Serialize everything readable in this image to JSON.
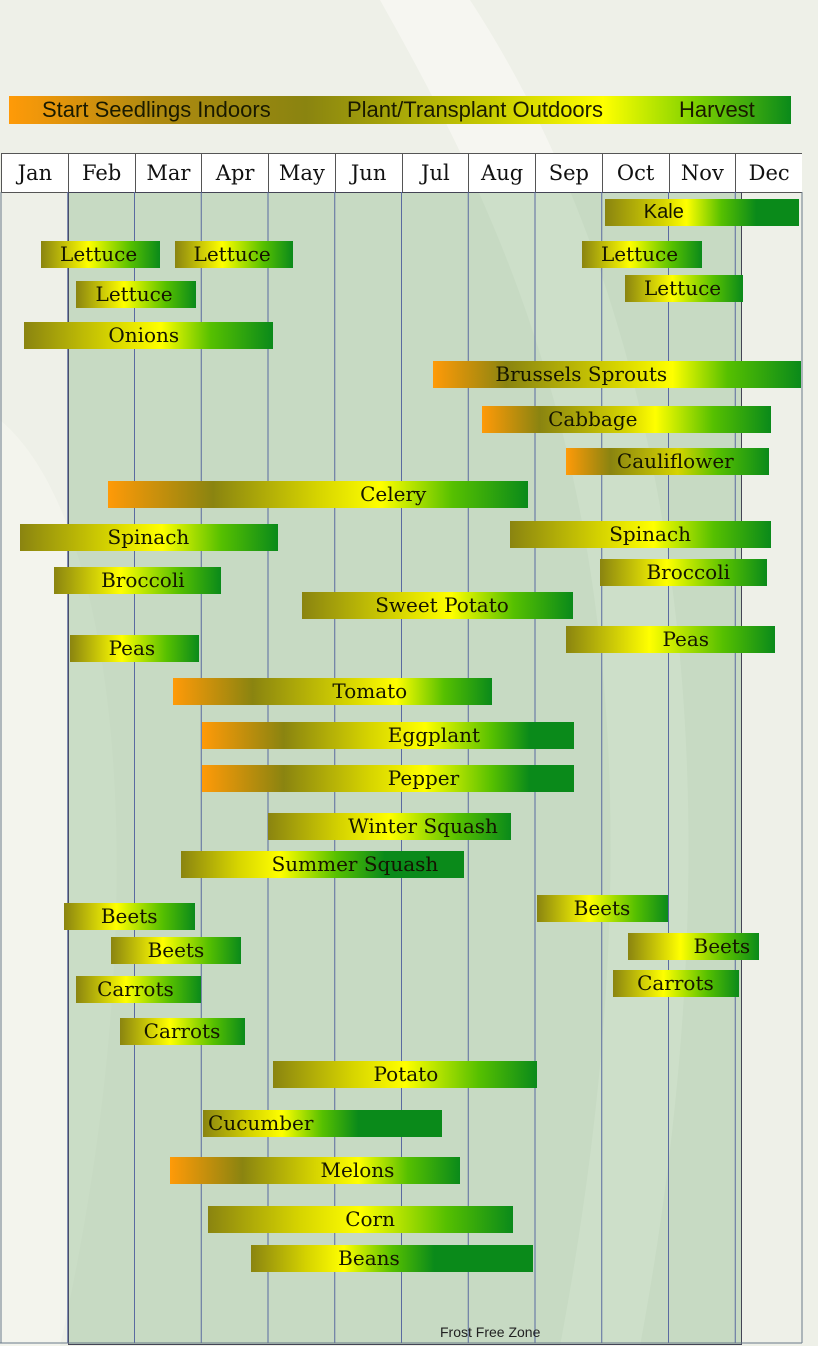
{
  "legend": {
    "start": "Start Seedlings Indoors",
    "plant": "Plant/Transplant Outdoors",
    "harvest": "Harvest"
  },
  "frost_label": "Frost Free Zone",
  "colors": {
    "start": "#ff9a08",
    "plant": "#8a8410",
    "harvest_early": "#ffff00",
    "harvest_late": "#0a8a1a"
  },
  "chart_data": {
    "type": "gantt",
    "x_axis": {
      "categories": [
        "Jan",
        "Feb",
        "Mar",
        "Apr",
        "May",
        "Jun",
        "Jul",
        "Aug",
        "Sep",
        "Oct",
        "Nov",
        "Dec"
      ],
      "range_months": [
        0,
        12
      ]
    },
    "frost_free_zone_months": [
      1.0,
      11.05
    ],
    "crops": [
      {
        "name": "Kale",
        "start": 9.05,
        "end": 11.95,
        "stages": [
          [
            0,
            "#8a8410"
          ],
          [
            0.3,
            "#d6d400"
          ],
          [
            0.42,
            "#ffff00"
          ],
          [
            0.6,
            "#56c000"
          ],
          [
            0.78,
            "#0a8a1a"
          ]
        ]
      },
      {
        "name": "Lettuce",
        "start": 0.6,
        "end": 2.38,
        "stages": [
          [
            0,
            "#8a8410"
          ],
          [
            0.4,
            "#ffff00"
          ],
          [
            0.75,
            "#56c000"
          ],
          [
            1,
            "#0a8a1a"
          ]
        ]
      },
      {
        "name": "Lettuce",
        "start": 2.6,
        "end": 4.38,
        "stages": [
          [
            0,
            "#8a8410"
          ],
          [
            0.4,
            "#ffff00"
          ],
          [
            0.75,
            "#56c000"
          ],
          [
            1,
            "#0a8a1a"
          ]
        ]
      },
      {
        "name": "Lettuce",
        "start": 1.13,
        "end": 2.92,
        "stages": [
          [
            0,
            "#8a8410"
          ],
          [
            0.4,
            "#ffff00"
          ],
          [
            0.75,
            "#56c000"
          ],
          [
            1,
            "#0a8a1a"
          ]
        ]
      },
      {
        "name": "Lettuce",
        "start": 8.7,
        "end": 10.5,
        "stages": [
          [
            0,
            "#8a8410"
          ],
          [
            0.4,
            "#ffff00"
          ],
          [
            0.75,
            "#56c000"
          ],
          [
            1,
            "#0a8a1a"
          ]
        ]
      },
      {
        "name": "Lettuce",
        "start": 9.35,
        "end": 11.12,
        "stages": [
          [
            0,
            "#8a8410"
          ],
          [
            0.4,
            "#ffff00"
          ],
          [
            0.75,
            "#56c000"
          ],
          [
            1,
            "#0a8a1a"
          ]
        ]
      },
      {
        "name": "Onions",
        "start": 0.34,
        "end": 4.07,
        "stages": [
          [
            0,
            "#8a8410"
          ],
          [
            0.35,
            "#d6d400"
          ],
          [
            0.55,
            "#ffff00"
          ],
          [
            0.75,
            "#56c000"
          ],
          [
            1,
            "#0a8a1a"
          ]
        ]
      },
      {
        "name": "Brussels Sprouts",
        "start": 6.47,
        "end": 11.98,
        "stages": [
          [
            0,
            "#ff9a08"
          ],
          [
            0.2,
            "#8a8410"
          ],
          [
            0.5,
            "#d6d400"
          ],
          [
            0.65,
            "#ffff00"
          ],
          [
            0.8,
            "#56c000"
          ],
          [
            1,
            "#0a8a1a"
          ]
        ]
      },
      {
        "name": "Cabbage",
        "start": 7.2,
        "end": 11.53,
        "stages": [
          [
            0,
            "#ff9a08"
          ],
          [
            0.2,
            "#8a8410"
          ],
          [
            0.5,
            "#d6d400"
          ],
          [
            0.6,
            "#ffff00"
          ],
          [
            0.8,
            "#56c000"
          ],
          [
            1,
            "#0a8a1a"
          ]
        ]
      },
      {
        "name": "Cauliflower",
        "start": 8.47,
        "end": 11.5,
        "stages": [
          [
            0,
            "#ff9a08"
          ],
          [
            0.22,
            "#8a8410"
          ],
          [
            0.55,
            "#d6d400"
          ],
          [
            0.75,
            "#56c000"
          ],
          [
            1,
            "#0a8a1a"
          ]
        ]
      },
      {
        "name": "Celery",
        "start": 1.6,
        "end": 7.9,
        "stages": [
          [
            0,
            "#ff9a08"
          ],
          [
            0.25,
            "#8a8410"
          ],
          [
            0.5,
            "#d6d400"
          ],
          [
            0.65,
            "#ffff00"
          ],
          [
            0.82,
            "#56c000"
          ],
          [
            1,
            "#0a8a1a"
          ]
        ]
      },
      {
        "name": "Spinach",
        "start": 0.28,
        "end": 4.15,
        "stages": [
          [
            0,
            "#8a8410"
          ],
          [
            0.35,
            "#d6d400"
          ],
          [
            0.55,
            "#ffff00"
          ],
          [
            0.78,
            "#56c000"
          ],
          [
            1,
            "#0a8a1a"
          ]
        ]
      },
      {
        "name": "Spinach",
        "start": 7.63,
        "end": 11.53,
        "stages": [
          [
            0,
            "#8a8410"
          ],
          [
            0.35,
            "#d6d400"
          ],
          [
            0.55,
            "#ffff00"
          ],
          [
            0.78,
            "#56c000"
          ],
          [
            1,
            "#0a8a1a"
          ]
        ]
      },
      {
        "name": "Broccoli",
        "start": 0.8,
        "end": 3.3,
        "stages": [
          [
            0,
            "#8a8410"
          ],
          [
            0.4,
            "#ffff00"
          ],
          [
            0.75,
            "#56c000"
          ],
          [
            1,
            "#0a8a1a"
          ]
        ]
      },
      {
        "name": "Broccoli",
        "start": 8.97,
        "end": 11.47,
        "stages": [
          [
            0,
            "#8a8410"
          ],
          [
            0.4,
            "#ffff00"
          ],
          [
            0.75,
            "#56c000"
          ],
          [
            1,
            "#0a8a1a"
          ]
        ]
      },
      {
        "name": "Sweet Potato",
        "start": 4.51,
        "end": 8.57,
        "stages": [
          [
            0,
            "#8a8410"
          ],
          [
            0.35,
            "#d6d400"
          ],
          [
            0.55,
            "#ffff00"
          ],
          [
            0.78,
            "#56c000"
          ],
          [
            1,
            "#0a8a1a"
          ]
        ]
      },
      {
        "name": "Peas",
        "start": 1.03,
        "end": 2.97,
        "stages": [
          [
            0,
            "#8a8410"
          ],
          [
            0.4,
            "#ffff00"
          ],
          [
            0.75,
            "#56c000"
          ],
          [
            1,
            "#0a8a1a"
          ]
        ]
      },
      {
        "name": "Peas",
        "start": 8.47,
        "end": 11.6,
        "stages": [
          [
            0,
            "#8a8410"
          ],
          [
            0.4,
            "#ffff00"
          ],
          [
            0.75,
            "#56c000"
          ],
          [
            1,
            "#0a8a1a"
          ]
        ]
      },
      {
        "name": "Tomato",
        "start": 2.57,
        "end": 7.36,
        "stages": [
          [
            0,
            "#ff9a08"
          ],
          [
            0.25,
            "#8a8410"
          ],
          [
            0.55,
            "#d6d400"
          ],
          [
            0.7,
            "#ffff00"
          ],
          [
            0.85,
            "#56c000"
          ],
          [
            1,
            "#0a8a1a"
          ]
        ]
      },
      {
        "name": "Eggplant",
        "start": 3.01,
        "end": 8.58,
        "stages": [
          [
            0,
            "#ff9a08"
          ],
          [
            0.22,
            "#8a8410"
          ],
          [
            0.45,
            "#d6d400"
          ],
          [
            0.6,
            "#ffff00"
          ],
          [
            0.78,
            "#56c000"
          ],
          [
            0.88,
            "#0a8a1a"
          ]
        ]
      },
      {
        "name": "Pepper",
        "start": 3.01,
        "end": 8.58,
        "stages": [
          [
            0,
            "#ff9a08"
          ],
          [
            0.22,
            "#8a8410"
          ],
          [
            0.45,
            "#d6d400"
          ],
          [
            0.6,
            "#ffff00"
          ],
          [
            0.78,
            "#56c000"
          ],
          [
            0.88,
            "#0a8a1a"
          ]
        ]
      },
      {
        "name": "Winter Squash",
        "start": 4.0,
        "end": 7.64,
        "stages": [
          [
            0,
            "#8a8410"
          ],
          [
            0.3,
            "#d6d400"
          ],
          [
            0.5,
            "#ffff00"
          ],
          [
            0.78,
            "#56c000"
          ],
          [
            1,
            "#0a8a1a"
          ]
        ]
      },
      {
        "name": "Summer Squash",
        "start": 2.7,
        "end": 6.93,
        "stages": [
          [
            0,
            "#8a8410"
          ],
          [
            0.2,
            "#d6d400"
          ],
          [
            0.35,
            "#ffff00"
          ],
          [
            0.55,
            "#56c000"
          ],
          [
            0.72,
            "#0a8a1a"
          ]
        ]
      },
      {
        "name": "Beets",
        "start": 0.95,
        "end": 2.9,
        "stages": [
          [
            0,
            "#8a8410"
          ],
          [
            0.4,
            "#ffff00"
          ],
          [
            0.75,
            "#56c000"
          ],
          [
            1,
            "#0a8a1a"
          ]
        ]
      },
      {
        "name": "Beets",
        "start": 1.65,
        "end": 3.6,
        "stages": [
          [
            0,
            "#8a8410"
          ],
          [
            0.4,
            "#ffff00"
          ],
          [
            0.75,
            "#56c000"
          ],
          [
            1,
            "#0a8a1a"
          ]
        ]
      },
      {
        "name": "Beets",
        "start": 8.03,
        "end": 9.99,
        "stages": [
          [
            0,
            "#8a8410"
          ],
          [
            0.4,
            "#ffff00"
          ],
          [
            0.75,
            "#56c000"
          ],
          [
            1,
            "#0a8a1a"
          ]
        ]
      },
      {
        "name": "Beets",
        "start": 9.4,
        "end": 11.35,
        "stages": [
          [
            0,
            "#8a8410"
          ],
          [
            0.4,
            "#ffff00"
          ],
          [
            0.75,
            "#56c000"
          ],
          [
            1,
            "#0a8a1a"
          ]
        ]
      },
      {
        "name": "Carrots",
        "start": 1.12,
        "end": 3.0,
        "stages": [
          [
            0,
            "#8a8410"
          ],
          [
            0.4,
            "#ffff00"
          ],
          [
            0.75,
            "#56c000"
          ],
          [
            1,
            "#0a8a1a"
          ]
        ]
      },
      {
        "name": "Carrots",
        "start": 1.78,
        "end": 3.66,
        "stages": [
          [
            0,
            "#8a8410"
          ],
          [
            0.4,
            "#ffff00"
          ],
          [
            0.75,
            "#56c000"
          ],
          [
            1,
            "#0a8a1a"
          ]
        ]
      },
      {
        "name": "Carrots",
        "start": 9.17,
        "end": 11.06,
        "stages": [
          [
            0,
            "#8a8410"
          ],
          [
            0.4,
            "#ffff00"
          ],
          [
            0.75,
            "#56c000"
          ],
          [
            1,
            "#0a8a1a"
          ]
        ]
      },
      {
        "name": "Potato",
        "start": 4.08,
        "end": 8.03,
        "stages": [
          [
            0,
            "#8a8410"
          ],
          [
            0.3,
            "#d6d400"
          ],
          [
            0.5,
            "#ffff00"
          ],
          [
            0.78,
            "#56c000"
          ],
          [
            1,
            "#0a8a1a"
          ]
        ]
      },
      {
        "name": "Cucumber",
        "start": 3.03,
        "end": 6.6,
        "stages": [
          [
            0,
            "#8a8410"
          ],
          [
            0.2,
            "#d6d400"
          ],
          [
            0.33,
            "#ffff00"
          ],
          [
            0.5,
            "#56c000"
          ],
          [
            0.65,
            "#0a8a1a"
          ]
        ]
      },
      {
        "name": "Melons",
        "start": 2.53,
        "end": 6.87,
        "stages": [
          [
            0,
            "#ff9a08"
          ],
          [
            0.25,
            "#8a8410"
          ],
          [
            0.5,
            "#d6d400"
          ],
          [
            0.65,
            "#ffff00"
          ],
          [
            0.82,
            "#56c000"
          ],
          [
            1,
            "#0a8a1a"
          ]
        ]
      },
      {
        "name": "Corn",
        "start": 3.1,
        "end": 7.67,
        "stages": [
          [
            0,
            "#8a8410"
          ],
          [
            0.3,
            "#d6d400"
          ],
          [
            0.5,
            "#ffff00"
          ],
          [
            0.78,
            "#56c000"
          ],
          [
            1,
            "#0a8a1a"
          ]
        ]
      },
      {
        "name": "Beans",
        "start": 3.74,
        "end": 7.97,
        "stages": [
          [
            0,
            "#8a8410"
          ],
          [
            0.2,
            "#d6d400"
          ],
          [
            0.33,
            "#ffff00"
          ],
          [
            0.5,
            "#56c000"
          ],
          [
            0.65,
            "#0a8a1a"
          ]
        ]
      }
    ]
  }
}
